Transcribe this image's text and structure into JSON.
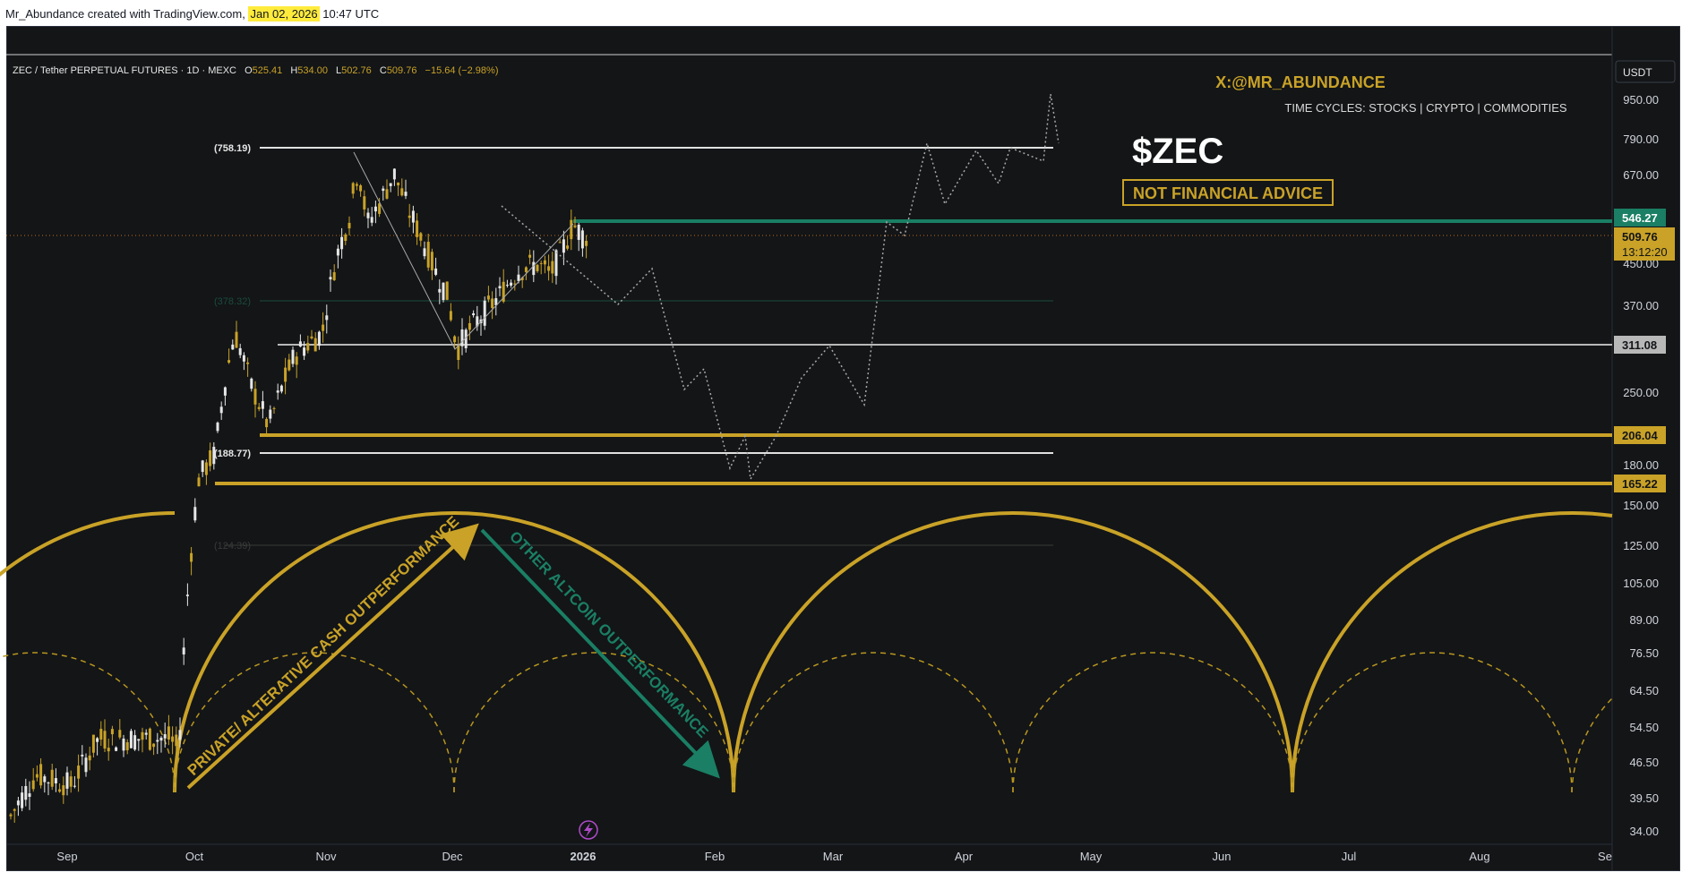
{
  "header": {
    "prefix": "Mr_Abundance created with TradingView.com,",
    "date": "Jan 02, 2026",
    "time": "10:47 UTC"
  },
  "legend": {
    "symbol": "ZEC / Tether PERPETUAL FUTURES · 1D · MEXC",
    "o_label": "O",
    "o": "525.41",
    "h_label": "H",
    "h": "534.00",
    "l_label": "L",
    "l": "502.76",
    "c_label": "C",
    "c": "509.76",
    "change": "−15.64 (−2.98%)"
  },
  "watermark": {
    "handle": "X:@MR_ABUNDANCE",
    "subtitle": "TIME CYCLES: STOCKS | CRYPTO | COMMODITIES",
    "ticker": "$ZEC",
    "disclaimer": "NOT FINANCIAL ADVICE"
  },
  "currency": "USDT",
  "colors": {
    "background": "#131517",
    "gold": "#c9a227",
    "green": "#1a7f64",
    "candle_up": "#c9a227",
    "candle_down": "#e6e6e6"
  },
  "chart_data": {
    "type": "candlestick",
    "scale": "log",
    "y_ticks": [
      "950.00",
      "790.00",
      "670.00",
      "450.00",
      "370.00",
      "250.00",
      "180.00",
      "150.00",
      "125.00",
      "105.00",
      "89.00",
      "76.50",
      "64.50",
      "54.50",
      "46.50",
      "39.50",
      "34.00"
    ],
    "x_ticks": [
      "Sep",
      "Oct",
      "Nov",
      "Dec",
      "2026",
      "Feb",
      "Mar",
      "Apr",
      "May",
      "Jun",
      "Jul",
      "Aug",
      "Se"
    ],
    "price_tags": [
      {
        "label": "546.27",
        "value": 546.27,
        "style": "green"
      },
      {
        "label": "509.76",
        "sub": "13:12:20",
        "value": 509.76,
        "style": "gold"
      },
      {
        "label": "311.08",
        "value": 311.08,
        "style": "grey"
      },
      {
        "label": "206.04",
        "value": 206.04,
        "style": "gold"
      },
      {
        "label": "165.22",
        "value": 165.22,
        "style": "gold"
      }
    ],
    "fib_levels": [
      {
        "label": "(758.19)",
        "value": 758.19,
        "faded": false
      },
      {
        "label": "(378.32)",
        "value": 378.32,
        "faded": true
      },
      {
        "label": "(188.77)",
        "value": 188.77,
        "faded": false
      },
      {
        "label": "(124.39)",
        "value": 124.39,
        "faded": true
      }
    ],
    "horizontal_lines": [
      {
        "value": 546.27,
        "color": "green"
      },
      {
        "value": 311.08,
        "color": "grey"
      },
      {
        "value": 206.04,
        "color": "gold"
      },
      {
        "value": 165.22,
        "color": "gold"
      }
    ],
    "annotations": [
      {
        "text": "PRIVATE/ ALTERATIVE CASH OUTPERFORMANCE",
        "color": "gold"
      },
      {
        "text": "OTHER ALTCOIN OUTPERFORMANCE",
        "color": "green"
      }
    ],
    "cycle_lows": [
      "late Sep 2025",
      "early Feb 2026",
      "mid Jun 2026"
    ],
    "projection": "dotted path from ~509 down to ~165 in Feb 2026, then up to ~950 by late Apr 2026",
    "grid": false
  }
}
